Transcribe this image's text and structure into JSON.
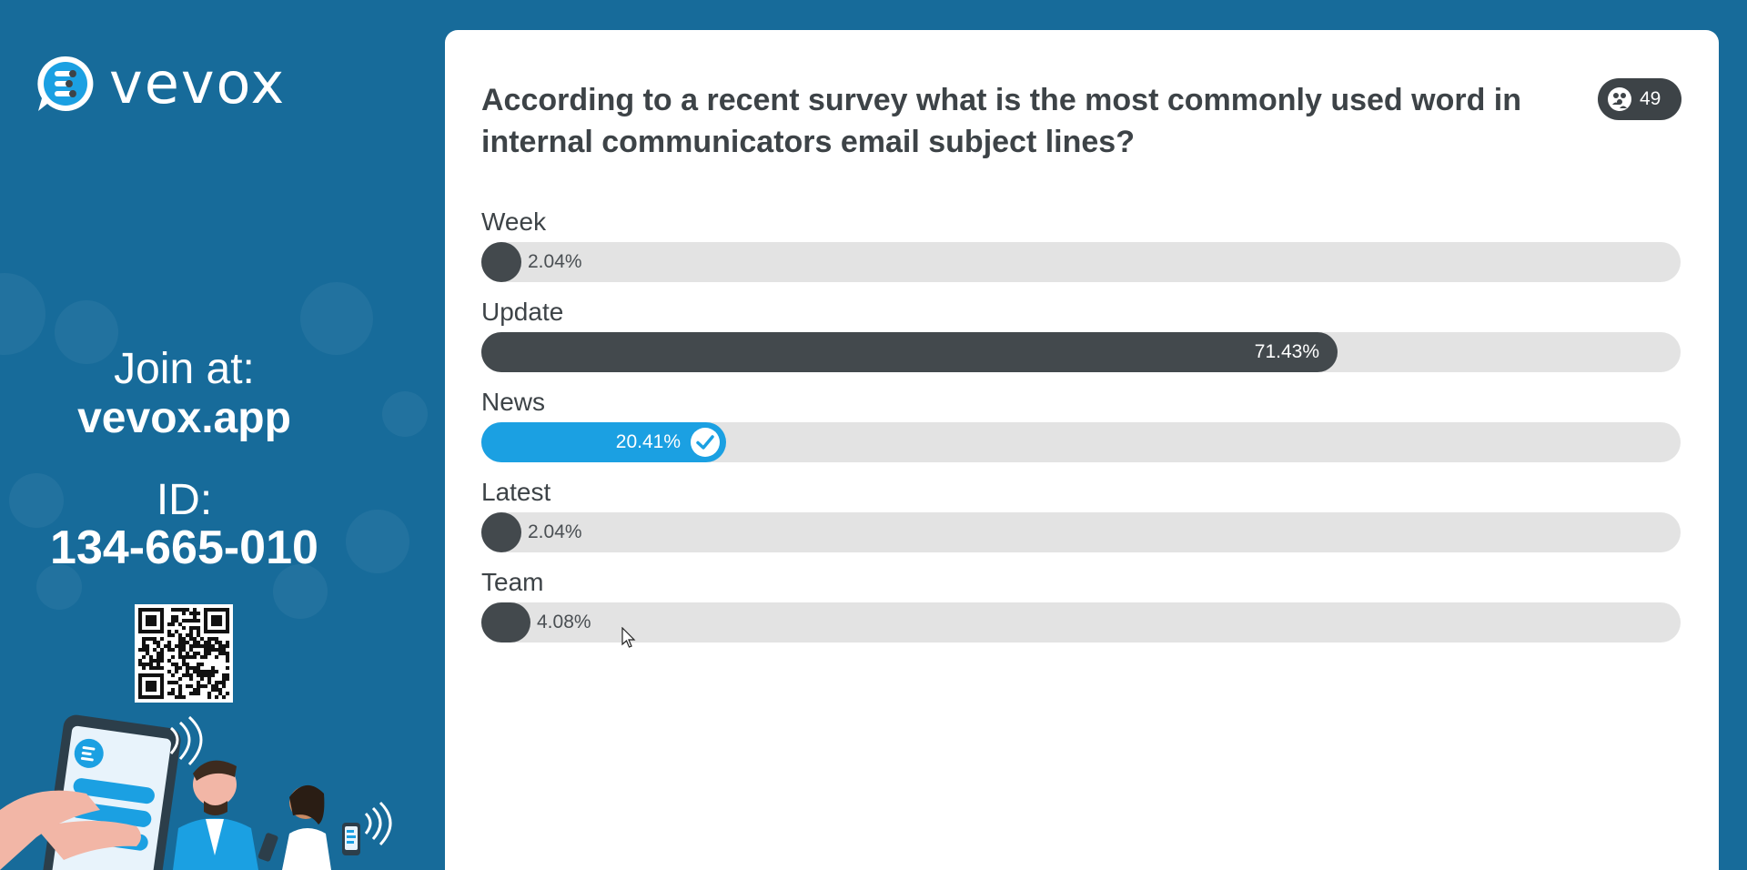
{
  "brand": {
    "name": "vevox"
  },
  "join": {
    "label": "Join at:",
    "url": "vevox.app",
    "id_label": "ID:",
    "id_value": "134-665-010"
  },
  "poll": {
    "question": "According to a recent survey what is the most commonly used word in internal communicators email subject lines?",
    "response_count": "49",
    "options": [
      {
        "label": "Week",
        "percent_text": "2.04%",
        "value": 2.04,
        "correct": false
      },
      {
        "label": "Update",
        "percent_text": "71.43%",
        "value": 71.43,
        "correct": false
      },
      {
        "label": "News",
        "percent_text": "20.41%",
        "value": 20.41,
        "correct": true
      },
      {
        "label": "Latest",
        "percent_text": "2.04%",
        "value": 2.04,
        "correct": false
      },
      {
        "label": "Team",
        "percent_text": "4.08%",
        "value": 4.08,
        "correct": false
      }
    ]
  },
  "colors": {
    "sidebar_bg": "#176b9a",
    "bar_dark": "#43494d",
    "bar_correct": "#1ba0e2",
    "track": "#e3e3e3",
    "text": "#3d4347"
  },
  "icons": {
    "logo": "vevox-logo-icon",
    "participants": "participants-icon",
    "correct": "checkmark-icon",
    "qr": "qr-code",
    "cursor": "mouse-pointer-icon"
  }
}
